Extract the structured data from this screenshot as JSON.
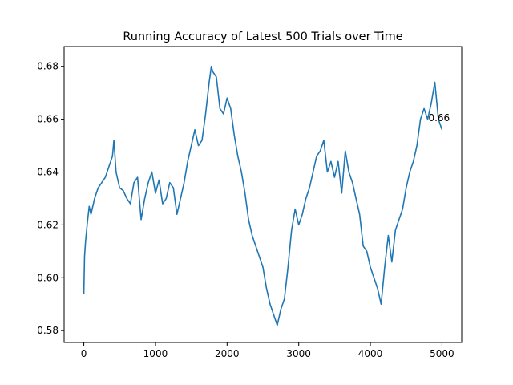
{
  "chart_data": {
    "type": "line",
    "title": "Running Accuracy of Latest 500 Trials over Time",
    "xlabel": "",
    "ylabel": "",
    "xlim": [
      -275,
      5275
    ],
    "ylim": [
      0.5755,
      0.6875
    ],
    "xticks": [
      0,
      1000,
      2000,
      3000,
      4000,
      5000
    ],
    "xtick_labels": [
      "0",
      "1000",
      "2000",
      "3000",
      "4000",
      "5000"
    ],
    "yticks": [
      0.58,
      0.6,
      0.62,
      0.64,
      0.66,
      0.68
    ],
    "ytick_labels": [
      "0.58",
      "0.60",
      "0.62",
      "0.64",
      "0.66",
      "0.68"
    ],
    "grid": false,
    "legend": "none",
    "series": [
      {
        "color": "#1f77b4",
        "x": [
          0,
          10,
          25,
          50,
          75,
          100,
          150,
          200,
          250,
          300,
          350,
          400,
          420,
          450,
          500,
          550,
          600,
          650,
          700,
          750,
          800,
          850,
          900,
          950,
          1000,
          1050,
          1100,
          1150,
          1200,
          1250,
          1300,
          1350,
          1400,
          1450,
          1500,
          1550,
          1600,
          1650,
          1700,
          1750,
          1780,
          1800,
          1850,
          1900,
          1950,
          2000,
          2050,
          2100,
          2150,
          2200,
          2250,
          2300,
          2350,
          2400,
          2450,
          2500,
          2550,
          2600,
          2650,
          2700,
          2750,
          2800,
          2850,
          2900,
          2950,
          3000,
          3050,
          3100,
          3150,
          3200,
          3250,
          3300,
          3350,
          3400,
          3450,
          3500,
          3550,
          3600,
          3650,
          3700,
          3750,
          3800,
          3850,
          3900,
          3950,
          4000,
          4050,
          4100,
          4150,
          4200,
          4250,
          4300,
          4350,
          4400,
          4450,
          4500,
          4550,
          4600,
          4650,
          4700,
          4750,
          4800,
          4850,
          4900,
          4950,
          5000
        ],
        "values": [
          0.594,
          0.608,
          0.614,
          0.621,
          0.627,
          0.624,
          0.63,
          0.634,
          0.636,
          0.638,
          0.642,
          0.646,
          0.652,
          0.64,
          0.634,
          0.633,
          0.63,
          0.628,
          0.636,
          0.638,
          0.622,
          0.63,
          0.636,
          0.64,
          0.632,
          0.637,
          0.628,
          0.63,
          0.636,
          0.634,
          0.624,
          0.63,
          0.636,
          0.644,
          0.65,
          0.656,
          0.65,
          0.652,
          0.662,
          0.674,
          0.68,
          0.678,
          0.676,
          0.664,
          0.662,
          0.668,
          0.664,
          0.654,
          0.646,
          0.64,
          0.632,
          0.622,
          0.616,
          0.612,
          0.608,
          0.604,
          0.596,
          0.59,
          0.586,
          0.582,
          0.588,
          0.592,
          0.604,
          0.618,
          0.626,
          0.62,
          0.624,
          0.63,
          0.634,
          0.64,
          0.646,
          0.648,
          0.652,
          0.64,
          0.644,
          0.638,
          0.644,
          0.632,
          0.648,
          0.64,
          0.636,
          0.63,
          0.624,
          0.612,
          0.61,
          0.604,
          0.6,
          0.596,
          0.59,
          0.604,
          0.616,
          0.606,
          0.618,
          0.622,
          0.626,
          0.634,
          0.64,
          0.644,
          0.65,
          0.66,
          0.664,
          0.66,
          0.666,
          0.674,
          0.66,
          0.656
        ]
      }
    ],
    "annotations": [
      {
        "text": "0.66",
        "x": 4810,
        "y": 0.6605
      }
    ]
  }
}
